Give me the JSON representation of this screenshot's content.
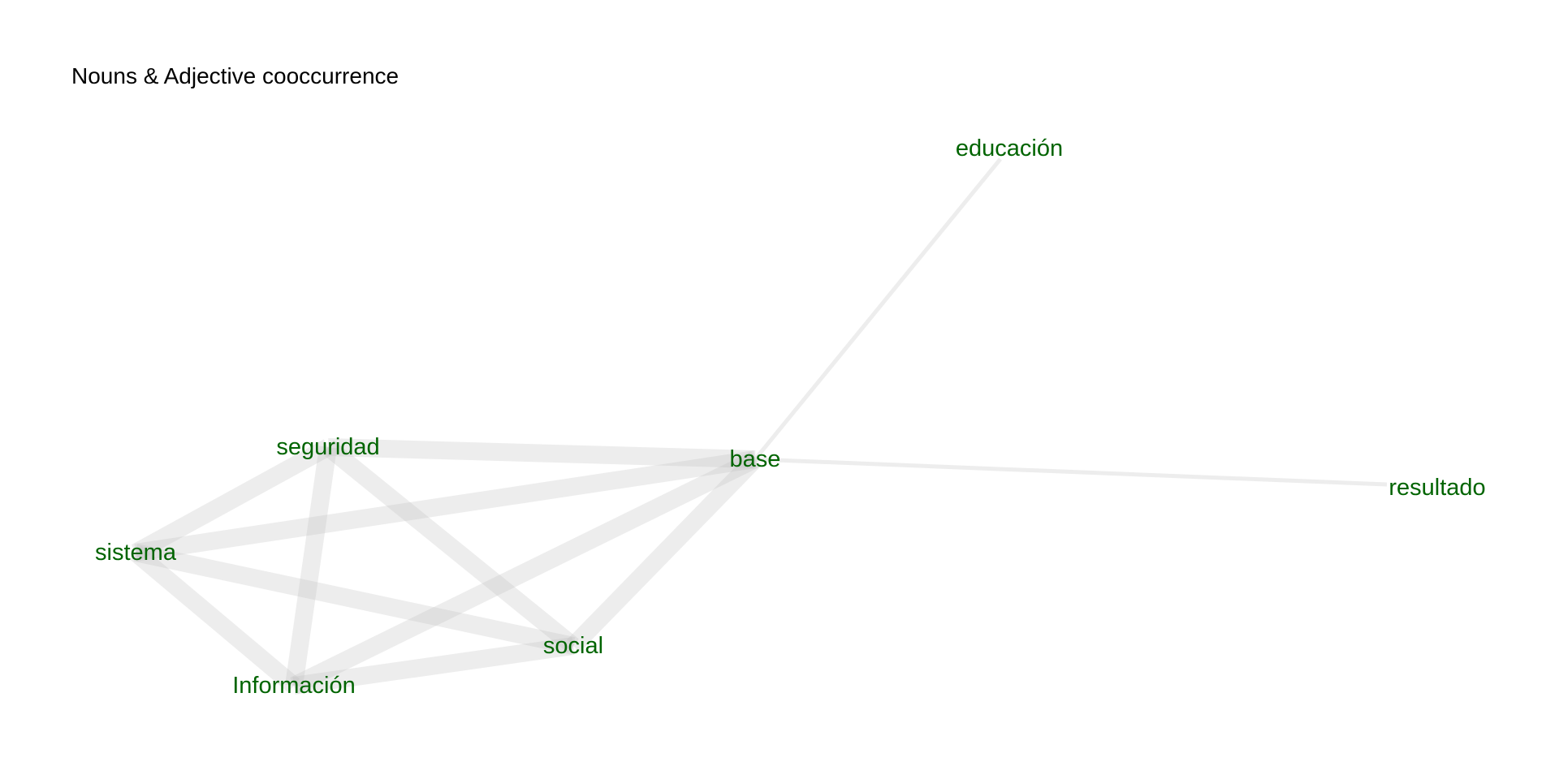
{
  "title": "Nouns & Adjective cooccurrence",
  "colors": {
    "node_label": "#006400",
    "edge": "#bebebe",
    "background": "#ffffff"
  },
  "nodes": [
    {
      "id": "seguridad",
      "label": "seguridad"
    },
    {
      "id": "base",
      "label": "base"
    },
    {
      "id": "sistema",
      "label": "sistema"
    },
    {
      "id": "social",
      "label": "social"
    },
    {
      "id": "informacion",
      "label": "Información"
    },
    {
      "id": "educacion",
      "label": "educación"
    },
    {
      "id": "resultado",
      "label": "resultado"
    }
  ],
  "edges": [
    {
      "source": "seguridad",
      "target": "base",
      "weight": 5
    },
    {
      "source": "seguridad",
      "target": "sistema",
      "weight": 5
    },
    {
      "source": "seguridad",
      "target": "social",
      "weight": 5
    },
    {
      "source": "seguridad",
      "target": "informacion",
      "weight": 5
    },
    {
      "source": "base",
      "target": "sistema",
      "weight": 5
    },
    {
      "source": "base",
      "target": "social",
      "weight": 5
    },
    {
      "source": "base",
      "target": "informacion",
      "weight": 5
    },
    {
      "source": "base",
      "target": "educacion",
      "weight": 1
    },
    {
      "source": "base",
      "target": "resultado",
      "weight": 1
    },
    {
      "source": "sistema",
      "target": "social",
      "weight": 5
    },
    {
      "source": "sistema",
      "target": "informacion",
      "weight": 5
    },
    {
      "source": "social",
      "target": "informacion",
      "weight": 5
    }
  ]
}
